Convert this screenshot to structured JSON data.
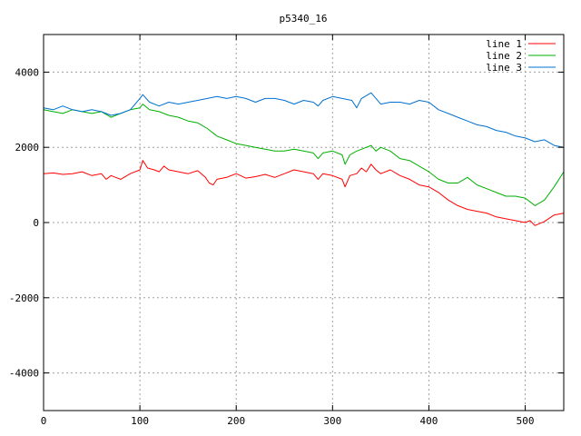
{
  "chart_data": {
    "type": "line",
    "title": "p5340_16",
    "xlabel": "",
    "ylabel": "",
    "xlim": [
      0,
      540
    ],
    "ylim": [
      -5000,
      5000
    ],
    "x_ticks": [
      0,
      100,
      200,
      300,
      400,
      500
    ],
    "y_ticks": [
      -4000,
      -2000,
      0,
      2000,
      4000
    ],
    "grid": true,
    "legend_position": "top-right",
    "series": [
      {
        "name": "line 1",
        "color": "#ff0000",
        "x": [
          0,
          10,
          20,
          30,
          40,
          50,
          60,
          65,
          70,
          80,
          90,
          100,
          103,
          108,
          115,
          120,
          125,
          130,
          140,
          150,
          160,
          168,
          172,
          176,
          180,
          190,
          200,
          210,
          220,
          230,
          240,
          250,
          260,
          270,
          280,
          285,
          290,
          300,
          310,
          313,
          318,
          325,
          330,
          335,
          340,
          345,
          350,
          360,
          370,
          380,
          390,
          400,
          410,
          420,
          430,
          440,
          450,
          460,
          470,
          480,
          490,
          500,
          505,
          510,
          520,
          530,
          540
        ],
        "y": [
          1300,
          1320,
          1280,
          1300,
          1350,
          1250,
          1300,
          1150,
          1250,
          1150,
          1300,
          1400,
          1650,
          1450,
          1400,
          1350,
          1500,
          1400,
          1350,
          1300,
          1380,
          1200,
          1050,
          1000,
          1150,
          1200,
          1300,
          1180,
          1220,
          1280,
          1200,
          1300,
          1400,
          1350,
          1300,
          1150,
          1300,
          1250,
          1150,
          950,
          1250,
          1300,
          1450,
          1350,
          1550,
          1400,
          1300,
          1400,
          1250,
          1150,
          1000,
          950,
          800,
          600,
          450,
          350,
          300,
          250,
          150,
          100,
          50,
          0,
          50,
          -80,
          30,
          200,
          250
        ]
      },
      {
        "name": "line 2",
        "color": "#00b000",
        "x": [
          0,
          10,
          20,
          30,
          40,
          50,
          60,
          70,
          80,
          90,
          100,
          103,
          110,
          120,
          130,
          140,
          150,
          160,
          170,
          180,
          190,
          200,
          210,
          220,
          230,
          240,
          250,
          260,
          270,
          280,
          285,
          290,
          300,
          310,
          313,
          318,
          325,
          330,
          340,
          345,
          350,
          360,
          370,
          380,
          390,
          400,
          410,
          420,
          430,
          440,
          450,
          460,
          470,
          480,
          490,
          500,
          505,
          510,
          520,
          530,
          540
        ],
        "y": [
          3000,
          2950,
          2900,
          3000,
          2950,
          2900,
          2950,
          2800,
          2900,
          3000,
          3050,
          3150,
          3000,
          2950,
          2850,
          2800,
          2700,
          2650,
          2500,
          2300,
          2200,
          2100,
          2050,
          2000,
          1950,
          1900,
          1900,
          1950,
          1900,
          1850,
          1700,
          1850,
          1900,
          1800,
          1550,
          1800,
          1900,
          1950,
          2050,
          1900,
          2000,
          1900,
          1700,
          1650,
          1500,
          1350,
          1150,
          1050,
          1050,
          1200,
          1000,
          900,
          800,
          700,
          700,
          650,
          550,
          450,
          600,
          950,
          1350
        ]
      },
      {
        "name": "line 3",
        "color": "#0070d0",
        "x": [
          0,
          10,
          20,
          30,
          40,
          50,
          60,
          70,
          80,
          90,
          100,
          103,
          110,
          120,
          130,
          140,
          150,
          160,
          170,
          180,
          190,
          200,
          210,
          220,
          230,
          240,
          250,
          260,
          270,
          280,
          285,
          290,
          300,
          310,
          320,
          325,
          330,
          340,
          350,
          360,
          370,
          380,
          390,
          400,
          410,
          420,
          430,
          440,
          450,
          460,
          470,
          480,
          490,
          500,
          510,
          520,
          530,
          540
        ],
        "y": [
          3050,
          3000,
          3100,
          3000,
          2950,
          3000,
          2950,
          2850,
          2900,
          3000,
          3300,
          3400,
          3200,
          3100,
          3200,
          3150,
          3200,
          3250,
          3300,
          3350,
          3300,
          3350,
          3300,
          3200,
          3300,
          3300,
          3250,
          3150,
          3250,
          3200,
          3100,
          3250,
          3350,
          3300,
          3250,
          3050,
          3300,
          3450,
          3150,
          3200,
          3200,
          3150,
          3250,
          3200,
          3000,
          2900,
          2800,
          2700,
          2600,
          2550,
          2450,
          2400,
          2300,
          2250,
          2150,
          2200,
          2050,
          2000
        ]
      }
    ]
  }
}
